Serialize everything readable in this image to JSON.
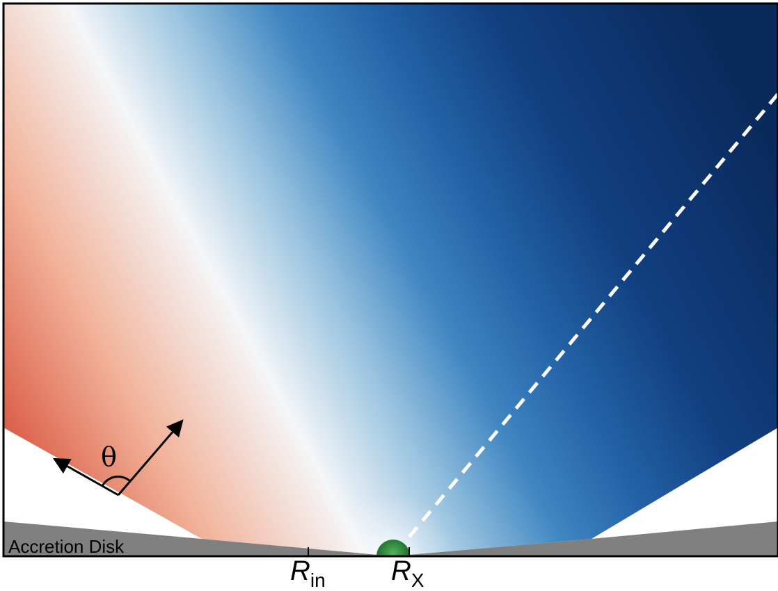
{
  "labels": {
    "accretion_disk": "Accretion Disk",
    "theta": "θ",
    "r_in_main": "R",
    "r_in_sub": "in",
    "r_x_main": "R",
    "r_x_sub": "X"
  },
  "colors": {
    "frame": "#000000",
    "disk": "#808080",
    "central_object": "#2e8b3d",
    "sightline": "#ffffff",
    "outflow_red": "#d9553f",
    "outflow_white": "#f4f6f8",
    "outflow_light_blue": "#7fb2d6",
    "outflow_mid_blue": "#2e6fb3",
    "outflow_dark_blue": "#0b2f66"
  }
}
